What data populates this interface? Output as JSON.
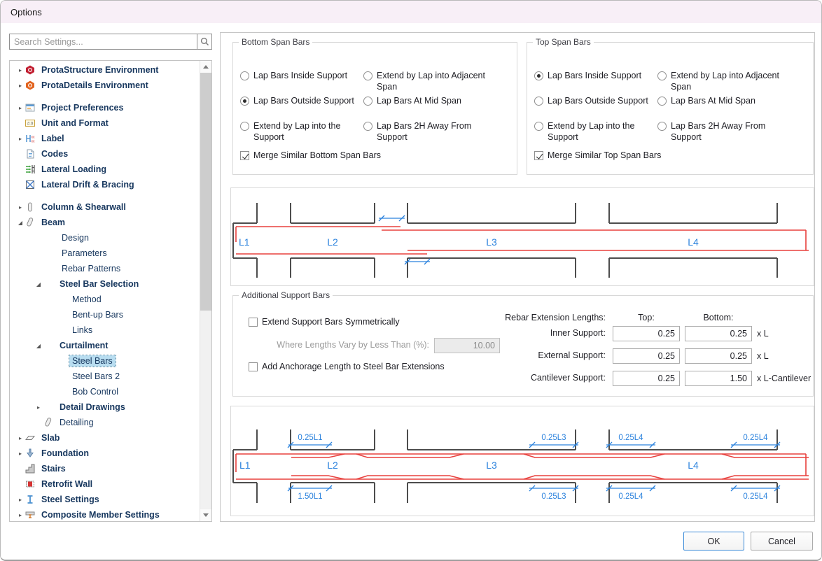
{
  "window": {
    "title": "Options"
  },
  "colors": {
    "accent_blue": "#2b82dd",
    "rebar_red": "#e8403d",
    "support_gray": "#4d4d4d",
    "titlebar_pink": "#f8eff7",
    "selection_blue": "#b8ddf0"
  },
  "sidebar": {
    "search": {
      "placeholder": "Search Settings...",
      "icon": "magnifier-icon"
    },
    "tree": [
      {
        "label": "ProtaStructure Environment",
        "icon": "protastructure",
        "bold": true,
        "expander": "collapsed",
        "level": 0
      },
      {
        "label": "ProtaDetails Environment",
        "icon": "protadetails",
        "bold": true,
        "expander": "collapsed",
        "level": 0,
        "separator_after": true
      },
      {
        "label": "Project Preferences",
        "icon": "project-preferences",
        "bold": true,
        "expander": "collapsed",
        "level": 0
      },
      {
        "label": "Unit and Format",
        "icon": "unit-format",
        "bold": true,
        "level": 0
      },
      {
        "label": "Label",
        "icon": "label",
        "bold": true,
        "expander": "collapsed",
        "level": 0
      },
      {
        "label": "Codes",
        "icon": "codes",
        "bold": true,
        "level": 0
      },
      {
        "label": "Lateral Loading",
        "icon": "lateral-loading",
        "bold": true,
        "level": 0
      },
      {
        "label": "Lateral Drift & Bracing",
        "icon": "lateral-drift",
        "bold": true,
        "level": 0,
        "separator_after": true
      },
      {
        "label": "Column & Shearwall",
        "icon": "column",
        "bold": true,
        "expander": "collapsed",
        "level": 0
      },
      {
        "label": "Beam",
        "icon": "beam",
        "bold": true,
        "expander": "expanded",
        "level": 0
      },
      {
        "label": "Design",
        "level": 1
      },
      {
        "label": "Parameters",
        "level": 1
      },
      {
        "label": "Rebar Patterns",
        "level": 1
      },
      {
        "label": "Steel Bar Selection",
        "bold": true,
        "expander": "expanded",
        "level": 1
      },
      {
        "label": "Method",
        "level": 2
      },
      {
        "label": "Bent-up Bars",
        "level": 2
      },
      {
        "label": "Links",
        "level": 2
      },
      {
        "label": "Curtailment",
        "bold": true,
        "expander": "expanded",
        "level": 1
      },
      {
        "label": "Steel Bars",
        "level": 2,
        "selected": true
      },
      {
        "label": "Steel Bars 2",
        "level": 2
      },
      {
        "label": "Bob Control",
        "level": 2
      },
      {
        "label": "Detail Drawings",
        "bold": true,
        "expander": "collapsed",
        "level": 1
      },
      {
        "label": "Detailing",
        "icon": "detailing",
        "level": 1
      },
      {
        "label": "Slab",
        "icon": "slab",
        "bold": true,
        "expander": "collapsed",
        "level": 0
      },
      {
        "label": "Foundation",
        "icon": "foundation",
        "bold": true,
        "expander": "collapsed",
        "level": 0
      },
      {
        "label": "Stairs",
        "icon": "stairs",
        "bold": true,
        "level": 0
      },
      {
        "label": "Retrofit Wall",
        "icon": "retrofit",
        "bold": true,
        "level": 0
      },
      {
        "label": "Steel Settings",
        "icon": "steel",
        "bold": true,
        "expander": "collapsed",
        "level": 0
      },
      {
        "label": "Composite Member Settings",
        "icon": "composite",
        "bold": true,
        "expander": "collapsed",
        "level": 0
      }
    ]
  },
  "bottom_span_bars": {
    "title": "Bottom Span Bars",
    "options": [
      {
        "label": "Lap Bars Inside Support",
        "selected": false
      },
      {
        "label": "Extend by Lap into Adjacent Span",
        "selected": false
      },
      {
        "label": "Lap Bars Outside Support",
        "selected": true
      },
      {
        "label": "Lap Bars At Mid Span",
        "selected": false
      },
      {
        "label": "Extend by Lap into the Support",
        "selected": false
      },
      {
        "label": "Lap Bars 2H Away From Support",
        "selected": false
      }
    ],
    "merge_checkbox": {
      "label": "Merge Similar Bottom Span Bars",
      "checked": true
    }
  },
  "top_span_bars": {
    "title": "Top Span Bars",
    "options": [
      {
        "label": "Lap Bars Inside Support",
        "selected": true
      },
      {
        "label": "Extend by Lap into Adjacent Span",
        "selected": false
      },
      {
        "label": "Lap Bars Outside Support",
        "selected": false
      },
      {
        "label": "Lap Bars At Mid Span",
        "selected": false
      },
      {
        "label": "Extend by Lap into the Support",
        "selected": false
      },
      {
        "label": "Lap Bars 2H Away From Support",
        "selected": false
      }
    ],
    "merge_checkbox": {
      "label": "Merge Similar Top Span Bars",
      "checked": true
    }
  },
  "additional_support_bars": {
    "title": "Additional Support Bars",
    "extend_symmetrically": {
      "label": "Extend Support Bars Symmetrically",
      "checked": false
    },
    "vary_threshold": {
      "label": "Where Lengths Vary by Less Than (%):",
      "value": "10.00",
      "disabled": true
    },
    "add_anchorage": {
      "label": "Add Anchorage Length to Steel Bar Extensions",
      "checked": false
    },
    "rebar_extension": {
      "header": "Rebar Extension Lengths:",
      "col_top": "Top:",
      "col_bottom": "Bottom:",
      "rows": [
        {
          "label": "Inner Support:",
          "top": "0.25",
          "bottom": "0.25",
          "suffix": "x L"
        },
        {
          "label": "External Support:",
          "top": "0.25",
          "bottom": "0.25",
          "suffix": "x L"
        },
        {
          "label": "Cantilever Support:",
          "top": "0.25",
          "bottom": "1.50",
          "suffix": "x L-Cantilever"
        }
      ]
    }
  },
  "diagram1": {
    "span_labels": [
      "L1",
      "L2",
      "L3",
      "L4"
    ]
  },
  "diagram2": {
    "span_labels": [
      "L1",
      "L2",
      "L3",
      "L4"
    ],
    "top_dims": [
      "0.25L1",
      "0.25L3",
      "0.25L4",
      "0.25L4"
    ],
    "bottom_dims": [
      "1.50L1",
      "0.25L3",
      "0.25L4",
      "0.25L4"
    ]
  },
  "footer": {
    "ok_label": "OK",
    "cancel_label": "Cancel"
  }
}
